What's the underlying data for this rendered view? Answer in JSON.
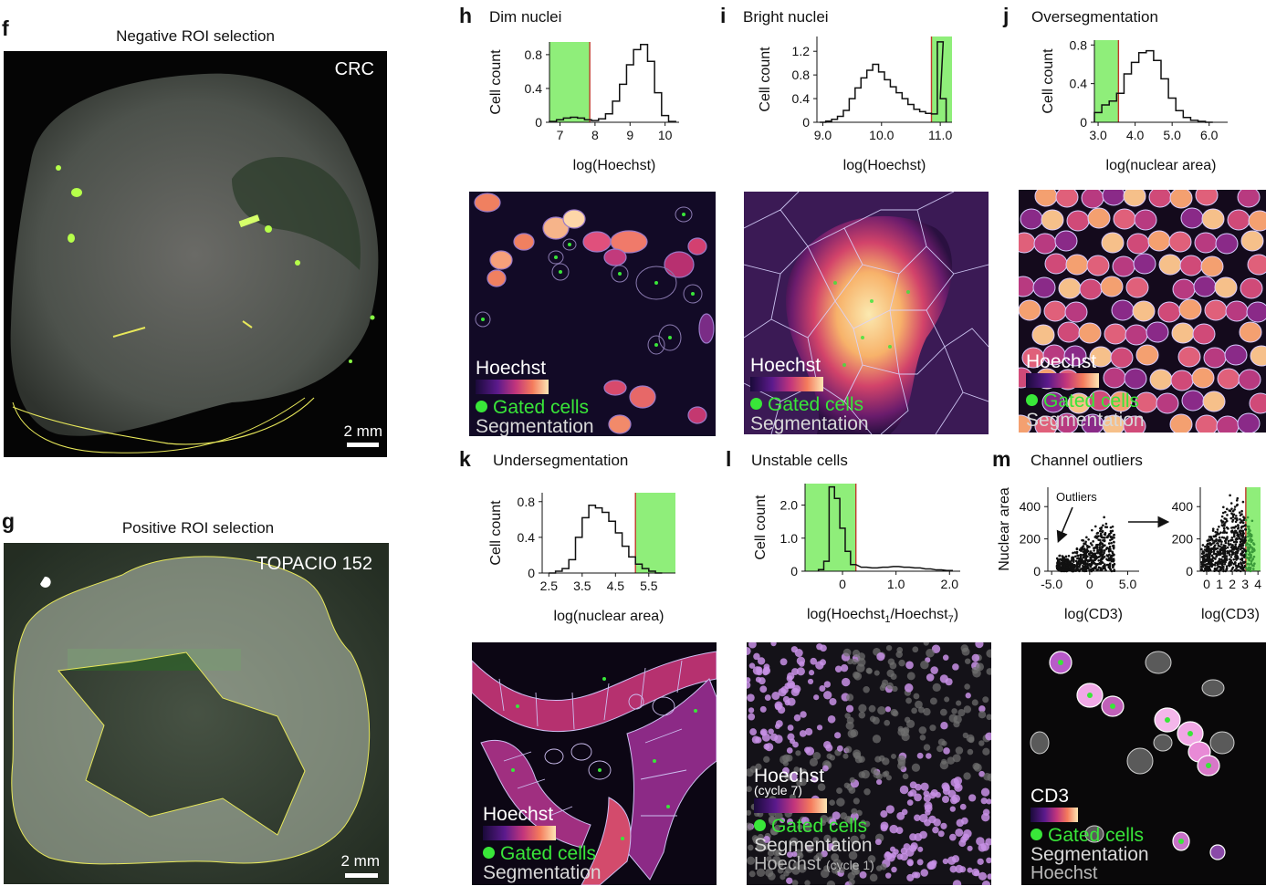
{
  "panels": {
    "f": {
      "label": "f",
      "title": "Negative ROI selection",
      "sample": "CRC",
      "scale": "2 mm"
    },
    "g": {
      "label": "g",
      "title": "Positive ROI selection",
      "sample": "TOPACIO 152",
      "scale": "2 mm"
    },
    "h": {
      "label": "h",
      "title": "Dim nuclei"
    },
    "i": {
      "label": "i",
      "title": "Bright nuclei"
    },
    "j": {
      "label": "j",
      "title": "Oversegmentation"
    },
    "k": {
      "label": "k",
      "title": "Undersegmentation"
    },
    "l": {
      "label": "l",
      "title": "Unstable cells"
    },
    "m": {
      "label": "m",
      "title": "Channel outliers",
      "annotation": "Outliers"
    }
  },
  "legends": {
    "hoechst": "Hoechst",
    "hoechst_cycle7": "Hoechst",
    "cycle7_sub": "(cycle 7)",
    "cd3": "CD3",
    "gated": "Gated cells",
    "segmentation": "Segmentation",
    "hoechst_gray": "Hoechst",
    "cycle1_sub": "(cycle 1)"
  },
  "colors": {
    "gate": "#8fee7a",
    "gate_line": "#c0392b",
    "gated_cells": "#39e639",
    "roi_line": "#e8e85a",
    "hist_line": "#111111"
  },
  "chart_data": [
    {
      "panel": "h",
      "type": "area",
      "ylabel": "Cell count",
      "xlabel": "log(Hoechst)",
      "xlim": [
        6.7,
        10.4
      ],
      "ylim": [
        0,
        0.95
      ],
      "xticks": [
        7,
        8,
        9,
        10
      ],
      "xtick_labels": [
        "7",
        "8",
        "9",
        "10"
      ],
      "yticks": [
        0,
        0.4,
        0.8
      ],
      "ytick_labels": [
        "0",
        "0.4",
        "0.8"
      ],
      "gate": [
        6.7,
        7.85
      ],
      "x": [
        6.8,
        7.0,
        7.2,
        7.4,
        7.6,
        7.8,
        8.0,
        8.2,
        8.4,
        8.6,
        8.8,
        9.0,
        9.2,
        9.4,
        9.6,
        9.8,
        10.0,
        10.2
      ],
      "y": [
        0.01,
        0.03,
        0.05,
        0.06,
        0.05,
        0.03,
        0.02,
        0.04,
        0.1,
        0.25,
        0.45,
        0.68,
        0.86,
        0.92,
        0.72,
        0.35,
        0.08,
        0.01
      ]
    },
    {
      "panel": "i",
      "type": "area",
      "ylabel": "Cell count",
      "xlabel": "log(Hoechst)",
      "xlim": [
        8.9,
        11.2
      ],
      "ylim": [
        0,
        1.45
      ],
      "xticks": [
        9.0,
        10.0,
        11.0
      ],
      "xtick_labels": [
        "9.0",
        "10.0",
        "11.0"
      ],
      "yticks": [
        0,
        0.4,
        0.8,
        1.2
      ],
      "ytick_labels": [
        "0",
        "0.4",
        "0.8",
        "1.2"
      ],
      "gate": [
        10.85,
        11.2
      ],
      "x": [
        9.0,
        9.1,
        9.2,
        9.3,
        9.4,
        9.5,
        9.6,
        9.7,
        9.8,
        9.9,
        10.0,
        10.1,
        10.2,
        10.3,
        10.4,
        10.5,
        10.6,
        10.7,
        10.8,
        10.9,
        11.0,
        11.05
      ],
      "y": [
        0.0,
        0.02,
        0.05,
        0.1,
        0.2,
        0.4,
        0.58,
        0.75,
        0.88,
        0.98,
        0.85,
        0.72,
        0.6,
        0.5,
        0.4,
        0.3,
        0.22,
        0.18,
        0.15,
        0.14,
        1.36,
        0.4
      ]
    },
    {
      "panel": "j",
      "type": "area",
      "ylabel": "Cell count",
      "xlabel": "log(nuclear area)",
      "xlim": [
        2.9,
        6.5
      ],
      "ylim": [
        0,
        0.85
      ],
      "xticks": [
        3.0,
        4.0,
        5.0,
        6.0
      ],
      "xtick_labels": [
        "3.0",
        "4.0",
        "5.0",
        "6.0"
      ],
      "yticks": [
        0,
        0.4,
        0.8
      ],
      "ytick_labels": [
        "0",
        "0.4",
        "0.8"
      ],
      "gate": [
        2.9,
        3.55
      ],
      "x": [
        3.0,
        3.2,
        3.4,
        3.6,
        3.8,
        4.0,
        4.2,
        4.4,
        4.6,
        4.8,
        5.0,
        5.2,
        5.4,
        5.6,
        5.8,
        6.0
      ],
      "y": [
        0.1,
        0.18,
        0.22,
        0.3,
        0.5,
        0.62,
        0.72,
        0.74,
        0.64,
        0.45,
        0.25,
        0.12,
        0.05,
        0.02,
        0.01,
        0.0
      ]
    },
    {
      "panel": "k",
      "type": "area",
      "ylabel": "Cell count",
      "xlabel": "log(nuclear area)",
      "xlim": [
        2.3,
        6.3
      ],
      "ylim": [
        0,
        0.9
      ],
      "xticks": [
        2.5,
        3.5,
        4.5,
        5.5
      ],
      "xtick_labels": [
        "2.5",
        "3.5",
        "4.5",
        "5.5"
      ],
      "yticks": [
        0,
        0.4,
        0.8
      ],
      "ytick_labels": [
        "0",
        "0.4",
        "0.8"
      ],
      "gate": [
        5.1,
        6.3
      ],
      "x": [
        2.6,
        2.8,
        3.0,
        3.2,
        3.4,
        3.6,
        3.8,
        4.0,
        4.2,
        4.4,
        4.6,
        4.8,
        5.0,
        5.2,
        5.4,
        5.6,
        5.8
      ],
      "y": [
        0.0,
        0.02,
        0.05,
        0.15,
        0.4,
        0.62,
        0.76,
        0.73,
        0.68,
        0.58,
        0.45,
        0.3,
        0.18,
        0.1,
        0.05,
        0.02,
        0.0
      ]
    },
    {
      "panel": "l",
      "type": "area",
      "ylabel": "Cell count",
      "xlabel": "log(Hoechst1/Hoechst7)",
      "xlim": [
        -0.7,
        2.2
      ],
      "ylim": [
        0,
        2.65
      ],
      "xticks": [
        0,
        1.0,
        2.0
      ],
      "xtick_labels": [
        "0",
        "1.0",
        "2.0"
      ],
      "yticks": [
        0,
        1.0,
        2.0
      ],
      "ytick_labels": [
        "0",
        "1.0",
        "2.0"
      ],
      "gate": [
        -0.7,
        0.25
      ],
      "x": [
        -0.4,
        -0.3,
        -0.2,
        -0.1,
        0.0,
        0.1,
        0.2,
        0.4,
        0.6,
        0.8,
        1.0,
        1.2,
        1.4,
        1.6,
        1.8,
        2.0
      ],
      "y": [
        0.05,
        0.3,
        2.55,
        2.2,
        1.3,
        0.6,
        0.2,
        0.12,
        0.1,
        0.12,
        0.14,
        0.12,
        0.1,
        0.07,
        0.04,
        0.02
      ]
    },
    {
      "panel": "m-left",
      "type": "scatter",
      "ylabel": "Nuclear area",
      "xlabel": "log(CD3)",
      "xlim": [
        -5.5,
        6.5
      ],
      "ylim": [
        0,
        520
      ],
      "xticks": [
        -5.0,
        0,
        5.0
      ],
      "xtick_labels": [
        "-5.0",
        "0",
        "5.0"
      ],
      "yticks": [
        0,
        200,
        400
      ],
      "ytick_labels": [
        "0",
        "200",
        "400"
      ],
      "density_peak": {
        "x": 2.0,
        "y": 300
      }
    },
    {
      "panel": "m-right",
      "type": "scatter",
      "xlabel": "log(CD3)",
      "xlim": [
        -0.5,
        4.2
      ],
      "ylim": [
        0,
        520
      ],
      "xticks": [
        0,
        1,
        2,
        3,
        4
      ],
      "xtick_labels": [
        "0",
        "1",
        "2",
        "3",
        "4"
      ],
      "yticks": [
        0,
        200,
        400
      ],
      "ytick_labels": [
        "0",
        "200",
        "400"
      ],
      "gate": [
        3.05,
        4.2
      ],
      "density_peak": {
        "x": 2.1,
        "y": 420
      }
    }
  ]
}
